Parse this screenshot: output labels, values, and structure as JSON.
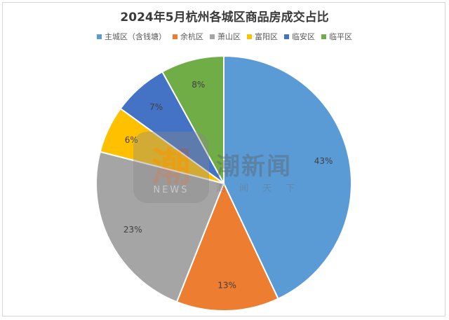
{
  "chart_data": {
    "type": "pie",
    "title": "2024年5月杭州各城区商品房成交占比",
    "legend_position": "top",
    "start_angle_deg": 90,
    "direction": "clockwise",
    "slices": [
      {
        "name": "主城区（含钱塘）",
        "value": 43,
        "label": "43%",
        "color": "#5b9bd5"
      },
      {
        "name": "余杭区",
        "value": 13,
        "label": "13%",
        "color": "#ed7d31"
      },
      {
        "name": "萧山区",
        "value": 23,
        "label": "23%",
        "color": "#a5a5a5"
      },
      {
        "name": "富阳区",
        "value": 6,
        "label": "6%",
        "color": "#ffc000"
      },
      {
        "name": "临安区",
        "value": 7,
        "label": "7%",
        "color": "#4472c4"
      },
      {
        "name": "临平区",
        "value": 8,
        "label": "8%",
        "color": "#70ad47"
      }
    ]
  },
  "watermark": {
    "logo_glyph": "潮",
    "logo_text": "NEWS",
    "name": "潮新闻",
    "slogan": "潮 闻 天 下"
  }
}
